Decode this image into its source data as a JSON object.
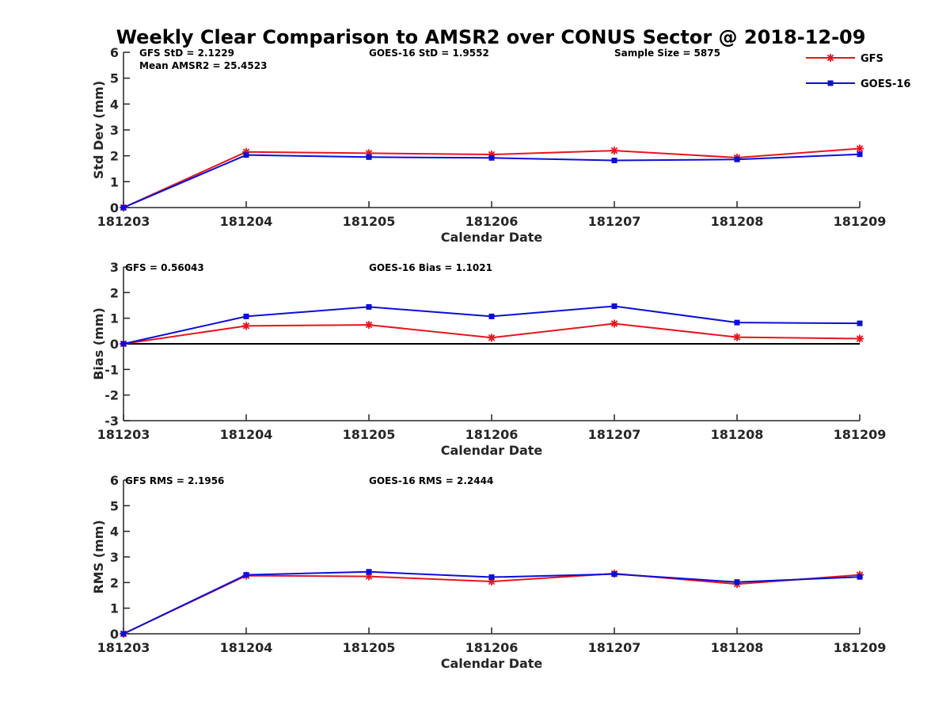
{
  "figure": {
    "title": "Weekly Clear Comparison to AMSR2 over CONUS Sector @ 2018-12-09",
    "legend": {
      "placement": "top-right",
      "entries": [
        {
          "name": "GFS",
          "color": "#e8141e",
          "marker": "asterisk"
        },
        {
          "name": "GOES-16",
          "color": "#0d0dd9",
          "marker": "square"
        }
      ]
    }
  },
  "chart_data": [
    {
      "type": "line",
      "xlabel": "Calendar Date",
      "ylabel": "Std Dev (mm)",
      "x": [
        "181203",
        "181204",
        "181205",
        "181206",
        "181207",
        "181208",
        "181209"
      ],
      "ylim": [
        0,
        6
      ],
      "yticks": [
        "0",
        "1",
        "2",
        "3",
        "4",
        "5",
        "6"
      ],
      "zero_line": false,
      "series": [
        {
          "name": "GFS",
          "color": "#e8141e",
          "marker": "asterisk",
          "values": [
            0.0,
            2.15,
            2.1,
            2.05,
            2.2,
            1.93,
            2.28
          ]
        },
        {
          "name": "GOES-16",
          "color": "#0d0dd9",
          "marker": "square",
          "values": [
            0.0,
            2.03,
            1.95,
            1.92,
            1.82,
            1.86,
            2.06
          ]
        }
      ],
      "annotations": [
        {
          "text": "GFS StD = 2.1229",
          "slot": "left"
        },
        {
          "text": "Mean AMSR2 = 25.4523",
          "slot": "left-second"
        },
        {
          "text": "GOES-16 StD = 1.9552",
          "slot": "center"
        },
        {
          "text": "Sample Size = 5875",
          "slot": "right"
        }
      ]
    },
    {
      "type": "line",
      "xlabel": "Calendar Date",
      "ylabel": "Bias (mm)",
      "x": [
        "181203",
        "181204",
        "181205",
        "181206",
        "181207",
        "181208",
        "181209"
      ],
      "ylim": [
        -3,
        3
      ],
      "yticks": [
        "-3",
        "-2",
        "-1",
        "0",
        "1",
        "2",
        "3"
      ],
      "zero_line": true,
      "series": [
        {
          "name": "GFS",
          "color": "#e8141e",
          "marker": "asterisk",
          "values": [
            0.0,
            0.7,
            0.74,
            0.24,
            0.79,
            0.26,
            0.2
          ]
        },
        {
          "name": "GOES-16",
          "color": "#0d0dd9",
          "marker": "square",
          "values": [
            0.0,
            1.07,
            1.44,
            1.07,
            1.47,
            0.83,
            0.8
          ]
        }
      ],
      "annotations": [
        {
          "text": "GFS = 0.56043",
          "slot": "left"
        },
        {
          "text": "GOES-16 Bias  = 1.1021",
          "slot": "center"
        }
      ]
    },
    {
      "type": "line",
      "xlabel": "Calendar Date",
      "ylabel": "RMS (mm)",
      "x": [
        "181203",
        "181204",
        "181205",
        "181206",
        "181207",
        "181208",
        "181209"
      ],
      "ylim": [
        0,
        6
      ],
      "yticks": [
        "0",
        "1",
        "2",
        "3",
        "4",
        "5",
        "6"
      ],
      "zero_line": false,
      "series": [
        {
          "name": "GFS",
          "color": "#e8141e",
          "marker": "asterisk",
          "values": [
            0.0,
            2.27,
            2.24,
            2.04,
            2.35,
            1.94,
            2.3
          ]
        },
        {
          "name": "GOES-16",
          "color": "#0d0dd9",
          "marker": "square",
          "values": [
            0.0,
            2.3,
            2.42,
            2.21,
            2.33,
            2.02,
            2.22
          ]
        }
      ],
      "annotations": [
        {
          "text": "GFS RMS = 2.1956",
          "slot": "left"
        },
        {
          "text": "GOES-16 RMS = 2.2444",
          "slot": "center"
        }
      ]
    }
  ]
}
